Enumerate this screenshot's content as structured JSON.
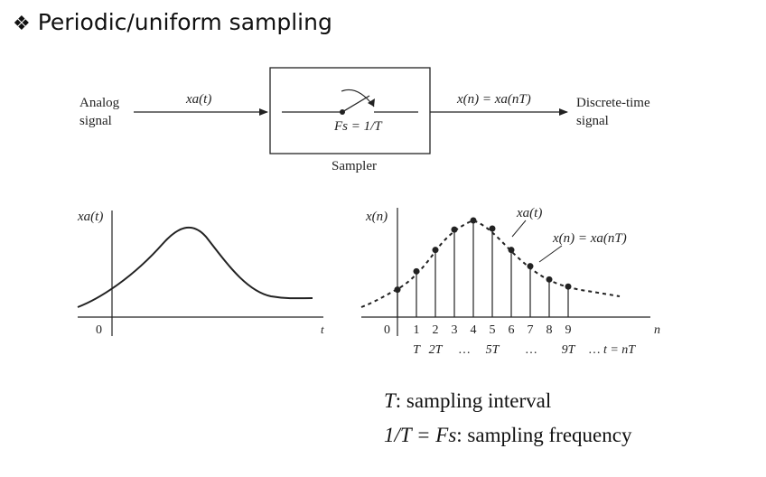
{
  "heading": {
    "bullet": "❖",
    "text": "Periodic/uniform sampling"
  },
  "block": {
    "input_label_line1": "Analog",
    "input_label_line2": "signal",
    "input_signal": "xa(t)",
    "sampler_rate": "Fs = 1/T",
    "sampler_caption": "Sampler",
    "output_signal": "x(n) = xa(nT)",
    "output_label_line1": "Discrete-time",
    "output_label_line2": "signal"
  },
  "left_plot": {
    "ylabel": "xa(t)",
    "xlabel": "t",
    "origin": "0"
  },
  "right_plot": {
    "ylabel": "x(n)",
    "xlabel": "n",
    "origin": "0",
    "curve_label": "xa(t)",
    "sample_label": "x(n) = xa(nT)",
    "n_ticks": [
      "1",
      "2",
      "3",
      "4",
      "5",
      "6",
      "7",
      "8",
      "9"
    ],
    "time_ticks": [
      "T",
      "2T",
      "…",
      "5T",
      "…",
      "9T",
      "… t = nT"
    ]
  },
  "definitions": {
    "line1_symbol": "T",
    "line1_text": ": sampling interval",
    "line2_symbol": "1/T = Fs",
    "line2_text": ": sampling frequency"
  },
  "chart_data": {
    "type": "scatter",
    "title": "",
    "xlabel": "n",
    "ylabel": "x(n)",
    "series": [
      {
        "name": "x(n) = xa(nT)",
        "x": [
          0,
          1,
          2,
          3,
          4,
          5,
          6,
          7,
          8,
          9
        ],
        "y": [
          0.27,
          0.45,
          0.66,
          0.86,
          0.95,
          0.87,
          0.66,
          0.5,
          0.37,
          0.3
        ]
      }
    ]
  }
}
